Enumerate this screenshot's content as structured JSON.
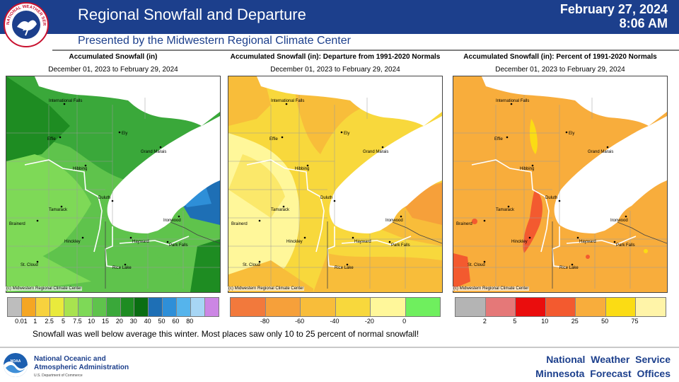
{
  "header": {
    "title": "Regional Snowfall and Departure",
    "date": "February 27, 2024",
    "time": "8:06 AM",
    "subtitle": "Presented by the Midwestern Regional Climate Center",
    "logo_text": "NATIONAL WEATHER SERVICE"
  },
  "panels": [
    {
      "title": "Accumulated Snowfall (in)",
      "range": "December 01, 2023 to February 29, 2024",
      "copyright": "(c) Midwestern Regional Climate Center",
      "legend_colors": [
        "#bdbdbd",
        "#f5a623",
        "#f7d23e",
        "#e9ea3c",
        "#a8e34f",
        "#7ed957",
        "#5fc34c",
        "#3aa83a",
        "#1e8c22",
        "#0a6e12",
        "#1e6fb5",
        "#2e8fd8",
        "#55b4ec",
        "#a7d6f5",
        "#cc86e4"
      ],
      "ticks": [
        "0.01",
        "1",
        "2.5",
        "5",
        "7.5",
        "10",
        "15",
        "20",
        "30",
        "40",
        "50",
        "60",
        "80"
      ]
    },
    {
      "title": "Accumulated Snowfall (in): Departure from 1991-2020 Normals",
      "range": "December 01, 2023 to February 29, 2024",
      "copyright": "(c) Midwestern Regional Climate Center",
      "legend_colors": [
        "#f2793c",
        "#f6a03a",
        "#f8bd3a",
        "#f8d83c",
        "#fff79a",
        "#6fef5e"
      ],
      "ticks": [
        "-80",
        "-60",
        "-40",
        "-20",
        "0"
      ]
    },
    {
      "title": "Accumulated Snowfall (in): Percent of 1991-2020 Normals",
      "range": "December 01, 2023 to February 29, 2024",
      "copyright": "(c) Midwestern Regional Climate Center",
      "legend_colors": [
        "#b4b4b4",
        "#e57878",
        "#ea0d0d",
        "#f35a2f",
        "#f8ad3c",
        "#fbdc14",
        "#fff4a8"
      ],
      "ticks": [
        "2",
        "5",
        "10",
        "25",
        "50",
        "75"
      ]
    }
  ],
  "cities": [
    "International Falls",
    "Effie",
    "Ely",
    "Grand Marais",
    "Hibbing",
    "Duluth",
    "Tamarack",
    "Brainerd",
    "Ironwood",
    "Hinckley",
    "Hayward",
    "Park Falls",
    "St. Cloud",
    "Rice Lake"
  ],
  "caption": "Snowfall was well below average this winter. Most places saw only 10 to 25 percent of normal snowfall!",
  "footer": {
    "noaa_line1": "National Oceanic and",
    "noaa_line2": "Atmospheric Administration",
    "noaa_dept": "U.S. Department of Commerce",
    "noaa_logo_text": "NOAA",
    "nws_line1": "National Weather Service",
    "nws_line2": "Minnesota Forecast Offices"
  }
}
